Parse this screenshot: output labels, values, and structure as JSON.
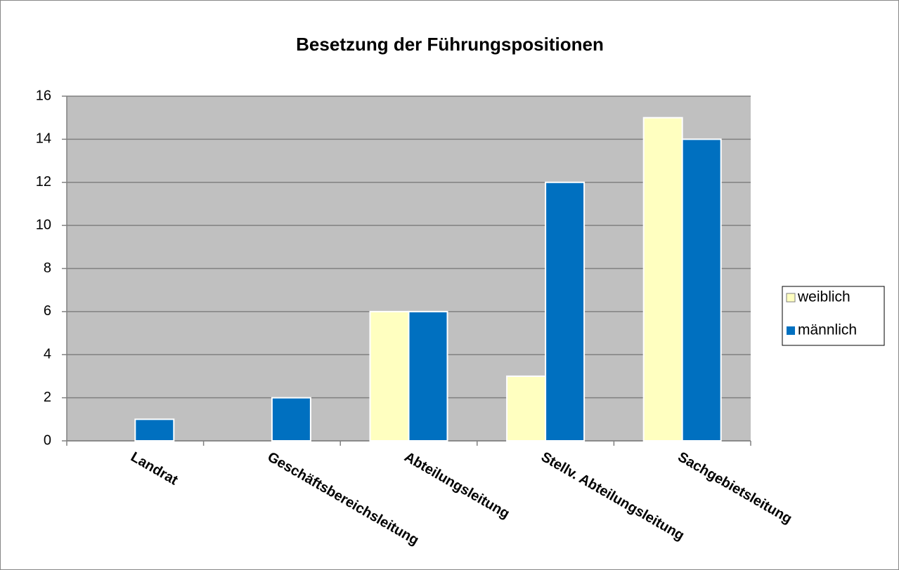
{
  "chart_data": {
    "type": "bar",
    "title": "Besetzung der Führungspositionen",
    "categories": [
      "Landrat",
      "Geschäftsbereichsleitung",
      "Abteilungsleitung",
      "Stellv. Abteilungsleitung",
      "Sachgebietsleitung"
    ],
    "series": [
      {
        "name": "weiblich",
        "color": "#ffffc0",
        "values": [
          0,
          0,
          6,
          3,
          15
        ]
      },
      {
        "name": "männlich",
        "color": "#0070c0",
        "values": [
          1,
          2,
          6,
          12,
          14
        ]
      }
    ],
    "ylim": [
      0,
      16
    ],
    "yticks": [
      0,
      2,
      4,
      6,
      8,
      10,
      12,
      14,
      16
    ],
    "grid": true,
    "legend": "right"
  }
}
